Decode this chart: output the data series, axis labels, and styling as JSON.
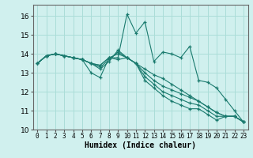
{
  "title": "",
  "xlabel": "Humidex (Indice chaleur)",
  "ylabel": "",
  "bg_color": "#d0f0ee",
  "line_color": "#1a7a6e",
  "grid_color": "#aaddd8",
  "xlim": [
    -0.5,
    23.5
  ],
  "ylim": [
    10,
    16.6
  ],
  "yticks": [
    10,
    11,
    12,
    13,
    14,
    15,
    16
  ],
  "xticks": [
    0,
    1,
    2,
    3,
    4,
    5,
    6,
    7,
    8,
    9,
    10,
    11,
    12,
    13,
    14,
    15,
    16,
    17,
    18,
    19,
    20,
    21,
    22,
    23
  ],
  "series": [
    [
      13.5,
      13.9,
      14.0,
      13.9,
      13.8,
      13.7,
      13.0,
      12.75,
      13.8,
      13.8,
      16.1,
      15.1,
      15.7,
      13.6,
      14.1,
      14.0,
      13.8,
      14.4,
      12.6,
      12.5,
      12.2,
      11.6,
      11.0,
      10.4
    ],
    [
      13.5,
      13.9,
      14.0,
      13.9,
      13.8,
      13.7,
      13.5,
      13.4,
      13.8,
      13.7,
      13.8,
      13.5,
      13.2,
      12.9,
      12.7,
      12.4,
      12.1,
      11.8,
      11.5,
      11.2,
      10.9,
      10.7,
      10.7,
      10.4
    ],
    [
      13.5,
      13.9,
      14.0,
      13.9,
      13.8,
      13.7,
      13.5,
      13.4,
      13.8,
      14.0,
      13.8,
      13.5,
      13.0,
      12.6,
      12.3,
      12.1,
      11.9,
      11.7,
      11.5,
      11.2,
      10.9,
      10.7,
      10.7,
      10.4
    ],
    [
      13.5,
      13.9,
      14.0,
      13.9,
      13.8,
      13.7,
      13.5,
      13.3,
      13.7,
      14.1,
      13.8,
      13.5,
      12.8,
      12.4,
      12.0,
      11.8,
      11.6,
      11.4,
      11.3,
      11.0,
      10.7,
      10.7,
      10.7,
      10.4
    ],
    [
      13.5,
      13.9,
      14.0,
      13.9,
      13.8,
      13.7,
      13.5,
      13.2,
      13.6,
      14.2,
      13.8,
      13.5,
      12.6,
      12.2,
      11.8,
      11.5,
      11.3,
      11.1,
      11.1,
      10.8,
      10.5,
      10.7,
      10.7,
      10.4
    ]
  ]
}
